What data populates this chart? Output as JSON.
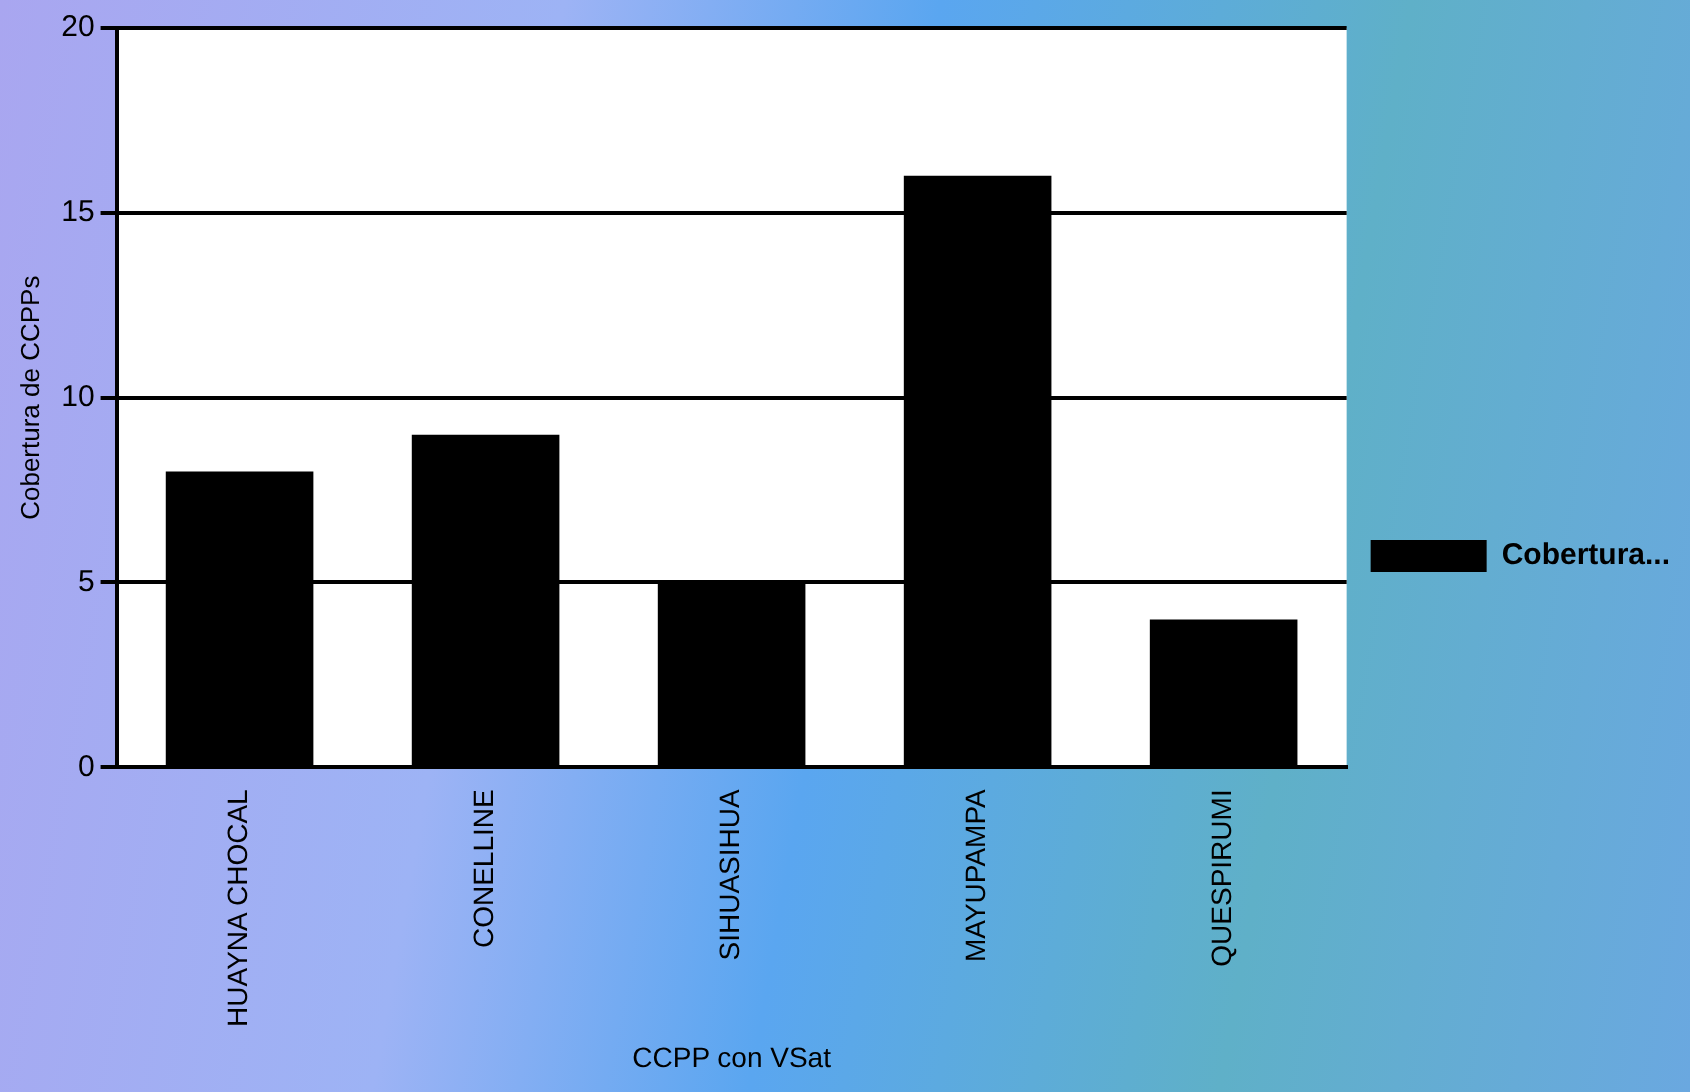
{
  "chart_data": {
    "type": "bar",
    "xlabel": "CCPP con VSat",
    "ylabel": "Cobertura de CCPPs",
    "categories": [
      "HUAYNA CHOCAL",
      "CONELLINE",
      "SIHUASIHUA",
      "MAYUPAMPA",
      "QUESPIRUMI"
    ],
    "series": [
      {
        "name": "Cobertura...",
        "color": "#000000",
        "values": [
          8,
          9,
          5,
          16,
          4
        ]
      }
    ],
    "ylim": [
      0,
      20
    ],
    "yticks": [
      0,
      5,
      10,
      15,
      20
    ],
    "grid": "y",
    "legend": "right"
  }
}
